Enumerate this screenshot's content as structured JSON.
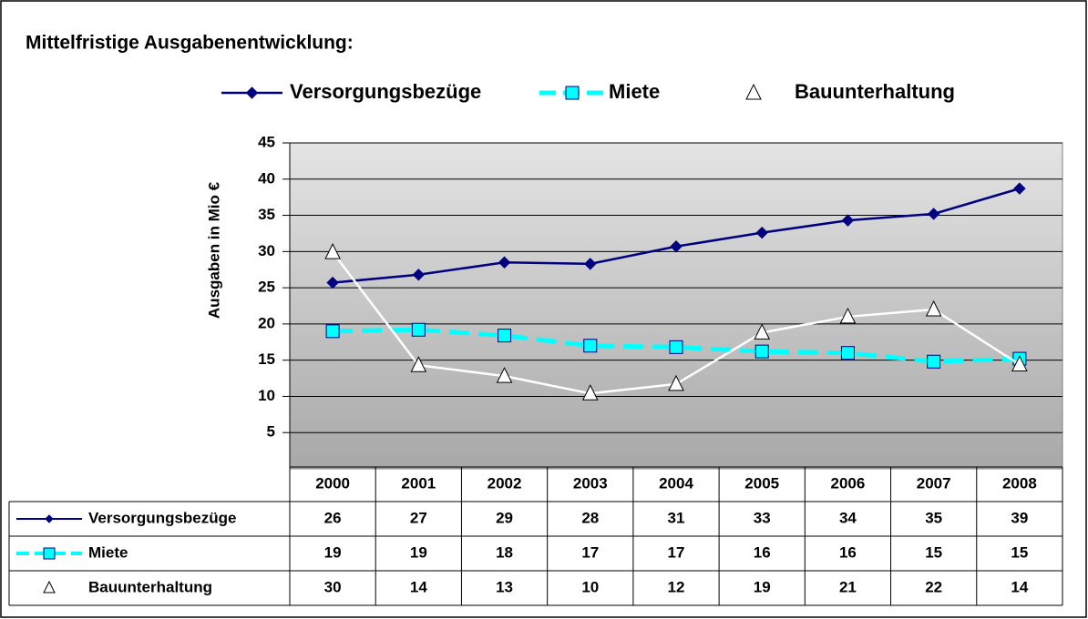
{
  "chart_data": {
    "type": "line",
    "title": "Mittelfristige Ausgabenentwicklung:",
    "y_label": "Ausgaben in Mio €",
    "categories": [
      "2000",
      "2001",
      "2002",
      "2003",
      "2004",
      "2005",
      "2006",
      "2007",
      "2008"
    ],
    "series": [
      {
        "name": "Versorgungsbezüge",
        "color": "#000080",
        "line_color": "#000080",
        "marker": "diamond",
        "dashed": false,
        "values": [
          25.7,
          26.8,
          28.5,
          28.3,
          30.7,
          32.6,
          34.3,
          35.2,
          38.7
        ],
        "value_labels": [
          "26",
          "27",
          "29",
          "28",
          "31",
          "33",
          "34",
          "35",
          "39"
        ]
      },
      {
        "name": "Miete",
        "color": "#00ffff",
        "line_color": "#00ffff",
        "marker": "square",
        "dashed": true,
        "values": [
          19.0,
          19.2,
          18.4,
          17.0,
          16.8,
          16.2,
          16.0,
          14.8,
          15.2
        ],
        "value_labels": [
          "19",
          "19",
          "18",
          "17",
          "17",
          "16",
          "16",
          "15",
          "15"
        ]
      },
      {
        "name": "Bauunterhaltung",
        "color": "#ffffff",
        "line_color": "#ffffff",
        "marker": "triangle",
        "dashed": false,
        "values": [
          29.9,
          14.3,
          12.8,
          10.4,
          11.7,
          18.8,
          21.0,
          22.0,
          14.4
        ],
        "value_labels": [
          "30",
          "14",
          "13",
          "10",
          "12",
          "19",
          "21",
          "22",
          "14"
        ]
      }
    ],
    "ylim": [
      0,
      45
    ],
    "yticks": [
      5,
      10,
      15,
      20,
      25,
      30,
      35,
      40,
      45
    ],
    "grid": true,
    "legend": "top"
  }
}
